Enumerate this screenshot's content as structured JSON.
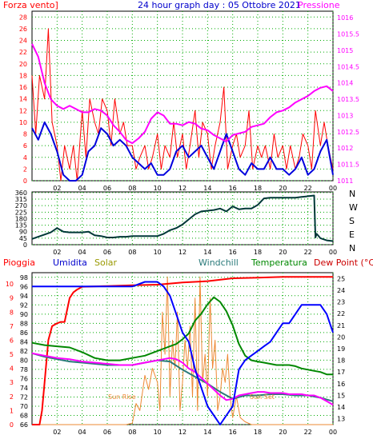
{
  "header": {
    "wind_label": "Forza vento]",
    "title": "24 hour graph day : 05 Ottobre 2021",
    "pressure_label": "Pressione"
  },
  "panel3_header": {
    "rain": "Pioggia",
    "humidity": "Umidita",
    "solar": "Solar",
    "windchill": "Windchill",
    "temperature": "Temperatura",
    "dewpoint": "Dew Point (°C)"
  },
  "colors": {
    "wind_gust": "#ff0000",
    "wind_avg": "#0000dd",
    "pressure": "#ff00ff",
    "direction": "#003838",
    "rain": "#ff0000",
    "humidity": "#0000ff",
    "solar": "#ee8833",
    "windchill": "#2a7a7a",
    "temperature": "#008800",
    "dewpoint": "#ff00ff",
    "grid": "#00aa00"
  },
  "chart_data": [
    {
      "type": "line",
      "title": "24 hour graph day : 05 Ottobre 2021",
      "x_tick_labels": [
        "02",
        "04",
        "06",
        "08",
        "10",
        "12",
        "14",
        "16",
        "18",
        "20",
        "22",
        "00"
      ],
      "y_left_label": "Forza vento]",
      "y_left_ticks": [
        0,
        2,
        4,
        6,
        8,
        10,
        12,
        14,
        16,
        18,
        20,
        22,
        24,
        26,
        28
      ],
      "ylim_left": [
        0,
        29
      ],
      "y_right_label": "Pressione",
      "y_right_ticks": [
        1011,
        1011.5,
        1012,
        1012.5,
        1013,
        1013.5,
        1014,
        1014.5,
        1015,
        1015.5,
        1016
      ],
      "ylim_right": [
        1011,
        1016.2
      ],
      "grid": true,
      "series": [
        {
          "name": "wind_gust",
          "axis": "left",
          "x": [
            0,
            0.3,
            0.6,
            1,
            1.3,
            1.6,
            2,
            2.3,
            2.6,
            3,
            3.3,
            3.6,
            4,
            4.3,
            4.6,
            5,
            5.3,
            5.6,
            6,
            6.3,
            6.6,
            7,
            7.3,
            7.6,
            8,
            8.3,
            8.6,
            9,
            9.3,
            9.6,
            10,
            10.3,
            10.6,
            11,
            11.3,
            11.6,
            12,
            12.3,
            12.6,
            13,
            13.3,
            13.6,
            14,
            14.3,
            14.6,
            15,
            15.3,
            15.6,
            16,
            16.3,
            16.6,
            17,
            17.3,
            17.6,
            18,
            18.3,
            18.6,
            19,
            19.3,
            19.6,
            20,
            20.3,
            20.6,
            21,
            21.3,
            21.6,
            22,
            22.3,
            22.6,
            23,
            23.3,
            23.6,
            24
          ],
          "y": [
            18,
            8,
            18,
            14,
            26,
            10,
            6,
            0,
            6,
            2,
            6,
            0,
            12,
            4,
            14,
            10,
            8,
            14,
            12,
            6,
            14,
            8,
            10,
            6,
            6,
            2,
            4,
            6,
            2,
            4,
            8,
            2,
            6,
            4,
            10,
            4,
            8,
            2,
            6,
            12,
            4,
            10,
            8,
            2,
            6,
            10,
            16,
            2,
            6,
            8,
            4,
            6,
            12,
            2,
            6,
            4,
            6,
            2,
            8,
            4,
            6,
            2,
            6,
            2,
            4,
            8,
            6,
            2,
            12,
            6,
            10,
            6,
            2
          ]
        },
        {
          "name": "wind_avg",
          "axis": "left",
          "x": [
            0,
            0.5,
            1,
            1.5,
            2,
            2.5,
            3,
            3.5,
            4,
            4.5,
            5,
            5.5,
            6,
            6.5,
            7,
            7.5,
            8,
            8.5,
            9,
            9.5,
            10,
            10.5,
            11,
            11.5,
            12,
            12.5,
            13,
            13.5,
            14,
            14.5,
            15,
            15.5,
            16,
            16.5,
            17,
            17.5,
            18,
            18.5,
            19,
            19.5,
            20,
            20.5,
            21,
            21.5,
            22,
            22.5,
            23,
            23.5,
            24
          ],
          "y": [
            9,
            7,
            10,
            8,
            5,
            1,
            0,
            0,
            1,
            5,
            6,
            9,
            8,
            6,
            7,
            6,
            4,
            3,
            2,
            3,
            1,
            1,
            2,
            5,
            6,
            4,
            5,
            6,
            4,
            2,
            5,
            8,
            5,
            2,
            1,
            3,
            2,
            2,
            4,
            2,
            2,
            1,
            2,
            4,
            1,
            2,
            5,
            7,
            1
          ]
        },
        {
          "name": "pressure",
          "axis": "right",
          "x": [
            0,
            0.5,
            1,
            1.5,
            2,
            2.5,
            3,
            3.5,
            4,
            4.5,
            5,
            5.5,
            6,
            6.5,
            7,
            7.5,
            8,
            8.5,
            9,
            9.5,
            10,
            10.5,
            11,
            11.5,
            12,
            12.5,
            13,
            13.5,
            14,
            14.5,
            15,
            15.5,
            16,
            16.5,
            17,
            17.5,
            18,
            18.5,
            19,
            19.5,
            20,
            20.5,
            21,
            21.5,
            22,
            22.5,
            23,
            23.5,
            24
          ],
          "y": [
            1015.2,
            1014.8,
            1014,
            1013.5,
            1013.3,
            1013.2,
            1013.3,
            1013.2,
            1013.1,
            1013.1,
            1013.2,
            1013.15,
            1013.0,
            1012.7,
            1012.5,
            1012.25,
            1012.15,
            1012.3,
            1012.5,
            1012.9,
            1013.1,
            1013.0,
            1012.75,
            1012.75,
            1012.7,
            1012.8,
            1012.75,
            1012.6,
            1012.55,
            1012.4,
            1012.3,
            1012.2,
            1012.4,
            1012.45,
            1012.5,
            1012.65,
            1012.7,
            1012.75,
            1012.95,
            1013.1,
            1013.15,
            1013.25,
            1013.4,
            1013.5,
            1013.6,
            1013.75,
            1013.85,
            1013.9,
            1013.75
          ]
        }
      ]
    },
    {
      "type": "line",
      "x_tick_labels": [
        "02",
        "04",
        "06",
        "08",
        "10",
        "12",
        "14",
        "16",
        "18",
        "20",
        "22",
        "00"
      ],
      "y_left_ticks": [
        0,
        45,
        90,
        135,
        180,
        225,
        270,
        315,
        360
      ],
      "ylim": [
        0,
        365
      ],
      "y_right_labels": [
        "N",
        "W",
        "S",
        "E",
        "N"
      ],
      "grid": true,
      "series": [
        {
          "name": "wind_direction",
          "x": [
            0,
            0.5,
            1,
            1.5,
            2,
            2.5,
            3,
            3.5,
            4,
            4.5,
            5,
            5.5,
            6,
            6.5,
            7,
            7.5,
            8,
            8.5,
            9,
            9.5,
            10,
            10.5,
            11,
            11.5,
            12,
            12.5,
            13,
            13.5,
            14,
            14.5,
            15,
            15.5,
            16,
            16.5,
            17,
            17.5,
            18,
            18.5,
            19,
            19.5,
            20,
            20.5,
            21,
            21.5,
            22,
            22.5,
            22.6,
            22.7,
            23,
            23.5,
            24
          ],
          "y": [
            40,
            55,
            70,
            85,
            115,
            90,
            85,
            85,
            85,
            90,
            65,
            60,
            50,
            50,
            55,
            55,
            60,
            60,
            60,
            60,
            60,
            75,
            100,
            115,
            140,
            175,
            210,
            230,
            235,
            240,
            250,
            230,
            265,
            245,
            250,
            250,
            275,
            320,
            325,
            325,
            325,
            325,
            325,
            330,
            335,
            340,
            50,
            75,
            45,
            30,
            25
          ]
        }
      ]
    },
    {
      "type": "line",
      "x_tick_labels": [
        "02",
        "04",
        "06",
        "08",
        "10",
        "12",
        "14",
        "16",
        "18",
        "20",
        "22",
        "00"
      ],
      "y_left1_ticks": [
        0,
        1,
        2,
        3,
        4,
        5,
        6,
        7,
        8,
        9,
        10
      ],
      "y_left2_ticks": [
        66,
        68,
        70,
        72,
        74,
        76,
        78,
        80,
        82,
        84,
        86,
        88,
        90,
        92,
        94,
        96,
        98
      ],
      "y_right_ticks": [
        13,
        14,
        15,
        16,
        17,
        18,
        19,
        20,
        21,
        22,
        23,
        24,
        25
      ],
      "ylim_rain": [
        0,
        10.8
      ],
      "ylim_humidity": [
        66,
        99
      ],
      "ylim_temperature": [
        12.5,
        25.5
      ],
      "annotations": [
        "Sun Rise",
        "Sun Set"
      ],
      "grid": true,
      "series": [
        {
          "name": "rain",
          "axis": "rain",
          "x": [
            0,
            0.6,
            0.8,
            1,
            1.3,
            1.6,
            2,
            2.3,
            2.6,
            3,
            3.3,
            3.6,
            4,
            6,
            8,
            10,
            12,
            14,
            16,
            18,
            20,
            22,
            23,
            24
          ],
          "y": [
            0,
            0,
            1,
            3,
            6,
            7,
            7.2,
            7.3,
            7.3,
            9,
            9.4,
            9.6,
            9.8,
            9.85,
            9.9,
            9.95,
            10.1,
            10.2,
            10.4,
            10.45,
            10.5,
            10.5,
            10.5,
            10.5
          ]
        },
        {
          "name": "humidity",
          "axis": "humidity",
          "x": [
            0,
            1,
            2,
            3,
            4,
            5,
            6,
            7,
            8,
            9,
            9.5,
            10,
            10.5,
            11,
            11.5,
            12,
            12.5,
            13,
            13.5,
            14,
            14.5,
            15,
            15.5,
            16,
            16.5,
            17,
            17.5,
            18,
            18.5,
            19,
            19.5,
            20,
            20.5,
            21,
            21.5,
            22,
            22.5,
            23,
            23.5,
            24
          ],
          "y": [
            96,
            96,
            96,
            96,
            96,
            96,
            96,
            96,
            96,
            97,
            97,
            97,
            96,
            94,
            90,
            86,
            84,
            78,
            74,
            70,
            68,
            66,
            68,
            70,
            78,
            80,
            81,
            82,
            83,
            84,
            86,
            88,
            88,
            90,
            92,
            92,
            92,
            92,
            90,
            86
          ]
        },
        {
          "name": "solar",
          "axis": "rain",
          "x": [
            0,
            6,
            6.5,
            7,
            7.5,
            8,
            8.3,
            8.6,
            9,
            9.3,
            9.6,
            10,
            10.2,
            10.4,
            10.6,
            10.8,
            11,
            11.2,
            11.4,
            11.6,
            11.8,
            12,
            12.2,
            12.4,
            12.6,
            12.8,
            13,
            13.2,
            13.4,
            13.6,
            13.8,
            14,
            14.2,
            14.4,
            14.6,
            14.8,
            15,
            15.2,
            15.4,
            15.6,
            15.8,
            16,
            16.3,
            16.6,
            17,
            17.5,
            18,
            24
          ],
          "y": [
            0,
            0,
            0,
            0,
            0,
            0.1,
            1.5,
            1,
            3.5,
            2.5,
            4,
            3,
            1,
            8,
            5,
            10.5,
            2,
            6,
            4,
            8,
            1,
            3,
            6,
            4,
            7,
            2,
            9,
            1,
            10.5,
            3,
            5,
            2,
            9,
            4,
            6,
            1,
            2,
            4,
            3,
            5,
            2,
            0.5,
            2,
            0.5,
            0.2,
            0,
            0,
            0
          ]
        },
        {
          "name": "windchill",
          "axis": "temperature",
          "x": [
            0,
            1,
            2,
            3,
            4,
            5,
            6,
            7,
            8,
            9,
            10,
            11,
            12,
            13,
            14,
            15,
            16,
            17,
            18,
            19,
            20,
            21,
            22,
            23,
            24
          ],
          "y": [
            18.6,
            18.3,
            18.1,
            17.9,
            17.8,
            17.7,
            17.6,
            17.6,
            17.6,
            17.8,
            18.0,
            17.9,
            17.2,
            16.6,
            16.0,
            15.3,
            14.7,
            15.0,
            15.0,
            15.1,
            15.1,
            15.0,
            15.0,
            14.8,
            14.5
          ]
        },
        {
          "name": "temperature",
          "axis": "temperature",
          "x": [
            0,
            1,
            2,
            3,
            4,
            5,
            6,
            7,
            8,
            9,
            10,
            10.5,
            11,
            11.5,
            12,
            12.5,
            13,
            13.5,
            14,
            14.5,
            15,
            15.5,
            16,
            16.5,
            17,
            17.5,
            18,
            18.5,
            19,
            19.5,
            20,
            20.5,
            21,
            21.5,
            22,
            22.5,
            23,
            23.5,
            24
          ],
          "y": [
            19.5,
            19.3,
            19.2,
            19.1,
            18.7,
            18.2,
            18.0,
            18.0,
            18.2,
            18.4,
            18.8,
            19.0,
            19.2,
            19.4,
            19.8,
            20.3,
            21.4,
            22.0,
            22.8,
            23.4,
            23.0,
            22.2,
            21.0,
            19.4,
            18.4,
            18.0,
            17.9,
            17.8,
            17.7,
            17.6,
            17.6,
            17.6,
            17.5,
            17.3,
            17.2,
            17.1,
            17.0,
            16.8,
            16.8
          ]
        },
        {
          "name": "dewpoint",
          "axis": "temperature",
          "x": [
            0,
            1,
            2,
            3,
            4,
            5,
            6,
            7,
            8,
            9,
            10,
            10.5,
            11,
            11.5,
            12,
            12.5,
            13,
            13.5,
            14,
            14.5,
            15,
            15.5,
            16,
            16.5,
            17,
            17.5,
            18,
            18.5,
            19,
            19.5,
            20,
            20.5,
            21,
            21.5,
            22,
            22.5,
            23,
            23.5,
            24
          ],
          "y": [
            18.6,
            18.4,
            18.2,
            18.1,
            17.9,
            17.8,
            17.7,
            17.6,
            17.6,
            17.8,
            18.0,
            18.1,
            18.2,
            18.1,
            17.8,
            17.3,
            17.0,
            16.5,
            16.0,
            15.5,
            15.0,
            14.6,
            14.7,
            15.0,
            15.1,
            15.2,
            15.3,
            15.3,
            15.2,
            15.2,
            15.2,
            15.1,
            15.1,
            15.1,
            15.0,
            15.0,
            14.8,
            14.5,
            14.2
          ]
        }
      ]
    }
  ]
}
